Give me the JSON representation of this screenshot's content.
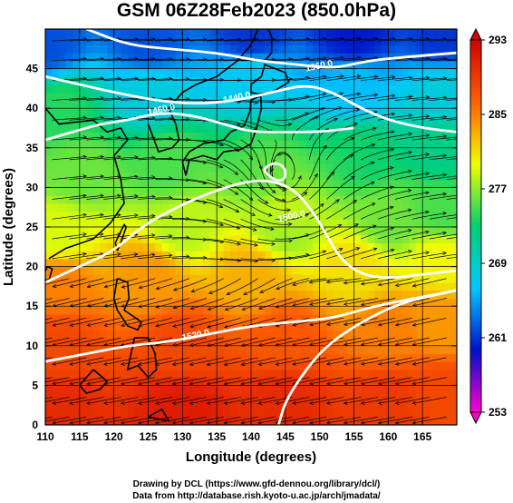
{
  "chart_data": {
    "type": "heatmap",
    "title": "GSM 06Z28Feb2023 (850.0hPa)",
    "xlabel": "Longitude (degrees)",
    "ylabel": "Latitude (degrees)",
    "xlim": [
      110,
      170
    ],
    "ylim": [
      0,
      50
    ],
    "x_ticks": [
      "110",
      "115",
      "120",
      "125",
      "130",
      "135",
      "140",
      "145",
      "150",
      "155",
      "160",
      "165"
    ],
    "y_ticks": [
      "0",
      "5",
      "10",
      "15",
      "20",
      "25",
      "30",
      "35",
      "40",
      "45"
    ],
    "grid": true,
    "colorbar": {
      "ticks": [
        "293",
        "285",
        "277",
        "269",
        "261",
        "253"
      ],
      "range": [
        253,
        293
      ],
      "colors": [
        "#ff00d0",
        "#0010c8",
        "#00c8ff",
        "#00d070",
        "#f0ff00",
        "#ff6000",
        "#d00000"
      ]
    },
    "contours": [
      {
        "label": "1360.0",
        "lon": 150,
        "lat": 45,
        "points": [
          [
            116,
            50
          ],
          [
            122,
            48
          ],
          [
            128,
            47.5
          ],
          [
            135,
            47
          ],
          [
            141,
            46
          ],
          [
            147,
            45.5
          ],
          [
            152,
            45
          ],
          [
            157,
            46
          ],
          [
            163,
            46.5
          ],
          [
            170,
            47
          ]
        ]
      },
      {
        "label": "1440.0",
        "lon": 138,
        "lat": 41,
        "points": [
          [
            110,
            44
          ],
          [
            115,
            43
          ],
          [
            120,
            42
          ],
          [
            126,
            41
          ],
          [
            132,
            40.5
          ],
          [
            138,
            41
          ],
          [
            143,
            42
          ],
          [
            148,
            43
          ],
          [
            152,
            42
          ],
          [
            156,
            40
          ],
          [
            160,
            38.5
          ],
          [
            165,
            37.5
          ],
          [
            170,
            37
          ]
        ]
      },
      {
        "label": "1460.0",
        "lon": 127,
        "lat": 39.5,
        "points": [
          [
            110,
            36
          ],
          [
            114,
            37
          ],
          [
            118,
            38
          ],
          [
            122,
            38.5
          ],
          [
            127,
            39.5
          ],
          [
            132,
            39
          ],
          [
            136,
            38
          ],
          [
            140,
            37
          ],
          [
            145,
            37
          ],
          [
            150,
            37
          ],
          [
            155,
            37.5
          ]
        ]
      },
      {
        "label": "1500.0",
        "lon": 146,
        "lat": 26,
        "points": [
          [
            110,
            18
          ],
          [
            115,
            20
          ],
          [
            120,
            22
          ],
          [
            124,
            25
          ],
          [
            128,
            27
          ],
          [
            133,
            29
          ],
          [
            138,
            30.5
          ],
          [
            142,
            31
          ],
          [
            146,
            30
          ],
          [
            149,
            27
          ],
          [
            151,
            24
          ],
          [
            153,
            21
          ],
          [
            156,
            19
          ],
          [
            160,
            18.5
          ],
          [
            165,
            19
          ],
          [
            170,
            19.5
          ]
        ]
      },
      {
        "label": "1520.0",
        "lon": 132,
        "lat": 11,
        "points": [
          [
            110,
            8
          ],
          [
            116,
            9
          ],
          [
            122,
            10
          ],
          [
            128,
            10.5
          ],
          [
            134,
            11.5
          ],
          [
            140,
            12.5
          ],
          [
            146,
            13
          ],
          [
            152,
            13.5
          ],
          [
            158,
            15
          ],
          [
            164,
            16
          ],
          [
            170,
            17
          ]
        ]
      },
      {
        "label": "",
        "lon": 0,
        "lat": 0,
        "points": [
          [
            142,
            32
          ],
          [
            143.5,
            30.8
          ],
          [
            145,
            31
          ],
          [
            145,
            32.5
          ],
          [
            143.5,
            33.2
          ],
          [
            142,
            32.5
          ],
          [
            142,
            32
          ]
        ]
      },
      {
        "label": "",
        "lon": 0,
        "lat": 0,
        "points": [
          [
            144,
            0
          ],
          [
            145,
            3
          ],
          [
            148,
            7
          ],
          [
            151,
            10
          ],
          [
            156,
            13
          ],
          [
            162,
            15.5
          ],
          [
            170,
            17
          ]
        ]
      }
    ],
    "temperature_anchors": [
      {
        "lon": 110,
        "lat": 48,
        "t": 262
      },
      {
        "lon": 125,
        "lat": 48,
        "t": 262
      },
      {
        "lon": 140,
        "lat": 49,
        "t": 261
      },
      {
        "lon": 155,
        "lat": 49,
        "t": 260
      },
      {
        "lon": 168,
        "lat": 49,
        "t": 261
      },
      {
        "lon": 112,
        "lat": 40,
        "t": 274
      },
      {
        "lon": 125,
        "lat": 42,
        "t": 268
      },
      {
        "lon": 140,
        "lat": 44,
        "t": 267
      },
      {
        "lon": 155,
        "lat": 43,
        "t": 266
      },
      {
        "lon": 168,
        "lat": 42,
        "t": 268
      },
      {
        "lon": 115,
        "lat": 32,
        "t": 276
      },
      {
        "lon": 128,
        "lat": 33,
        "t": 275
      },
      {
        "lon": 142,
        "lat": 33,
        "t": 274
      },
      {
        "lon": 156,
        "lat": 34,
        "t": 273
      },
      {
        "lon": 168,
        "lat": 35,
        "t": 272
      },
      {
        "lon": 112,
        "lat": 24,
        "t": 279
      },
      {
        "lon": 130,
        "lat": 25,
        "t": 278
      },
      {
        "lon": 145,
        "lat": 25,
        "t": 277
      },
      {
        "lon": 160,
        "lat": 26,
        "t": 276
      },
      {
        "lon": 168,
        "lat": 27,
        "t": 275
      },
      {
        "lon": 112,
        "lat": 18,
        "t": 285
      },
      {
        "lon": 125,
        "lat": 19,
        "t": 284
      },
      {
        "lon": 140,
        "lat": 19,
        "t": 283
      },
      {
        "lon": 155,
        "lat": 20,
        "t": 281
      },
      {
        "lon": 168,
        "lat": 21,
        "t": 280
      },
      {
        "lon": 112,
        "lat": 10,
        "t": 288
      },
      {
        "lon": 130,
        "lat": 10,
        "t": 288
      },
      {
        "lon": 145,
        "lat": 11,
        "t": 287
      },
      {
        "lon": 160,
        "lat": 12,
        "t": 285
      },
      {
        "lon": 168,
        "lat": 13,
        "t": 284
      },
      {
        "lon": 112,
        "lat": 2,
        "t": 290
      },
      {
        "lon": 130,
        "lat": 2,
        "t": 291
      },
      {
        "lon": 145,
        "lat": 3,
        "t": 290
      },
      {
        "lon": 160,
        "lat": 3,
        "t": 289
      },
      {
        "lon": 168,
        "lat": 4,
        "t": 288
      }
    ]
  },
  "credits": {
    "line1": "Drawing by DCL (https://www.gfd-dennou.org/library/dcl/)",
    "line2": "Data from http://database.rish.kyoto-u.ac.jp/arch/jmadata/"
  }
}
